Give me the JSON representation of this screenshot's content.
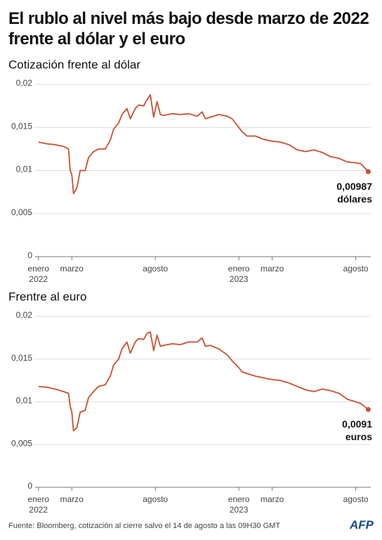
{
  "title": "El rublo al nivel más bajo desde marzo de 2022 frente al dólar y el euro",
  "chart_data": [
    {
      "type": "line",
      "title": "Cotización frente al dólar",
      "x": [
        0,
        0.5,
        1,
        1.5,
        1.8,
        1.9,
        2.0,
        2.1,
        2.3,
        2.5,
        2.8,
        3.0,
        3.3,
        3.6,
        4.0,
        4.3,
        4.5,
        4.8,
        5.0,
        5.3,
        5.5,
        5.8,
        6.0,
        6.3,
        6.5,
        6.7,
        6.9,
        7.1,
        7.3,
        7.5,
        8.0,
        8.5,
        9.0,
        9.5,
        9.8,
        10.0,
        10.3,
        10.8,
        11.3,
        11.6,
        12.0,
        12.2,
        12.5,
        13.0,
        13.5,
        14.0,
        14.5,
        15.0,
        15.5,
        16.0,
        16.5,
        17.0,
        17.5,
        18.0,
        18.5,
        19.0,
        19.3,
        19.75
      ],
      "series": [
        {
          "color": "#c8502e",
          "values": [
            0.0133,
            0.0131,
            0.013,
            0.0128,
            0.0125,
            0.01,
            0.0095,
            0.0073,
            0.008,
            0.01,
            0.01,
            0.0115,
            0.0122,
            0.0125,
            0.0125,
            0.0135,
            0.0148,
            0.0155,
            0.0165,
            0.0172,
            0.016,
            0.0172,
            0.0176,
            0.0175,
            0.0182,
            0.0188,
            0.0162,
            0.018,
            0.0165,
            0.0164,
            0.0166,
            0.0165,
            0.0166,
            0.0163,
            0.0168,
            0.016,
            0.0162,
            0.0165,
            0.0163,
            0.016,
            0.015,
            0.0145,
            0.014,
            0.014,
            0.0136,
            0.0134,
            0.0133,
            0.013,
            0.0124,
            0.0122,
            0.0124,
            0.0121,
            0.0116,
            0.0114,
            0.011,
            0.0109,
            0.0108,
            0.00987
          ]
        }
      ],
      "end_label": [
        "0,00987",
        "dólares"
      ],
      "xlim": [
        -0.2,
        19.9
      ],
      "xticks": [
        {
          "value": 0,
          "label": "enero\n2022"
        },
        {
          "value": 2,
          "label": "marzo"
        },
        {
          "value": 7,
          "label": "agosto"
        },
        {
          "value": 12,
          "label": "enero\n2023"
        },
        {
          "value": 14,
          "label": "marzo"
        },
        {
          "value": 19,
          "label": "agosto"
        }
      ],
      "ylim": [
        0,
        0.02
      ],
      "yticks": [
        0,
        {
          "value": 0.005,
          "label": "0,005"
        },
        {
          "value": 0.01,
          "label": "0,01"
        },
        {
          "value": 0.015,
          "label": "0,015"
        },
        {
          "value": 0.02,
          "label": "0,02"
        }
      ],
      "grid": true
    },
    {
      "type": "line",
      "title": "Frentre al euro",
      "x": [
        0,
        0.5,
        1,
        1.5,
        1.8,
        1.9,
        2.0,
        2.1,
        2.3,
        2.5,
        2.8,
        3.0,
        3.3,
        3.6,
        4.0,
        4.3,
        4.5,
        4.8,
        5.0,
        5.3,
        5.5,
        5.8,
        6.0,
        6.3,
        6.5,
        6.7,
        6.9,
        7.1,
        7.3,
        7.5,
        8.0,
        8.5,
        9.0,
        9.5,
        9.8,
        10.0,
        10.3,
        10.8,
        11.3,
        11.6,
        12.0,
        12.2,
        12.5,
        13.0,
        13.5,
        14.0,
        14.5,
        15.0,
        15.5,
        16.0,
        16.5,
        17.0,
        17.5,
        18.0,
        18.5,
        19.0,
        19.3,
        19.75
      ],
      "series": [
        {
          "color": "#c8502e",
          "values": [
            0.0118,
            0.0117,
            0.0115,
            0.0112,
            0.011,
            0.0095,
            0.0088,
            0.0066,
            0.007,
            0.0088,
            0.009,
            0.0105,
            0.0112,
            0.0118,
            0.012,
            0.013,
            0.0143,
            0.015,
            0.0162,
            0.017,
            0.0157,
            0.017,
            0.0174,
            0.0173,
            0.018,
            0.0182,
            0.016,
            0.0178,
            0.0165,
            0.0166,
            0.0168,
            0.0167,
            0.017,
            0.017,
            0.0175,
            0.0165,
            0.0166,
            0.0162,
            0.0155,
            0.0148,
            0.014,
            0.0135,
            0.0133,
            0.013,
            0.0128,
            0.0126,
            0.0125,
            0.0122,
            0.0118,
            0.0114,
            0.0112,
            0.0115,
            0.0113,
            0.011,
            0.0103,
            0.01,
            0.0098,
            0.0091
          ]
        }
      ],
      "end_label": [
        "0,0091",
        "euros"
      ],
      "xlim": [
        -0.2,
        19.9
      ],
      "xticks": [
        {
          "value": 0,
          "label": "enero\n2022"
        },
        {
          "value": 2,
          "label": "marzo"
        },
        {
          "value": 7,
          "label": "agosto"
        },
        {
          "value": 12,
          "label": "enero\n2023"
        },
        {
          "value": 14,
          "label": "marzo"
        },
        {
          "value": 19,
          "label": "agosto"
        }
      ],
      "ylim": [
        0,
        0.02
      ],
      "yticks": [
        0,
        {
          "value": 0.005,
          "label": "0,005"
        },
        {
          "value": 0.01,
          "label": "0,01"
        },
        {
          "value": 0.015,
          "label": "0,015"
        },
        {
          "value": 0.02,
          "label": "0,02"
        }
      ],
      "grid": true
    }
  ],
  "source": "Fuente: Bloomberg, cotización al cierre salvo el 14 de agosto a las 09H30 GMT",
  "logo": "AFP"
}
